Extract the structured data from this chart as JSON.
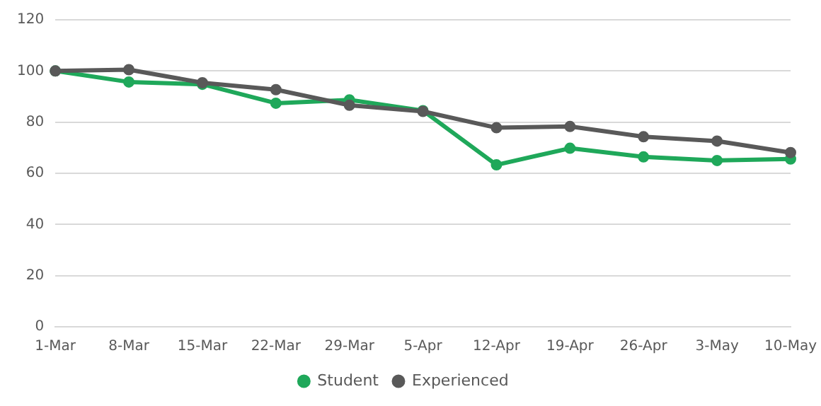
{
  "chart_data": {
    "type": "line",
    "categories": [
      "1-Mar",
      "8-Mar",
      "15-Mar",
      "22-Mar",
      "29-Mar",
      "5-Apr",
      "12-Apr",
      "19-Apr",
      "26-Apr",
      "3-May",
      "10-May"
    ],
    "series": [
      {
        "name": "Student",
        "color": "#1fa85a",
        "values": [
          100,
          95.7,
          94.8,
          87.4,
          88.7,
          84.5,
          63.3,
          69.8,
          66.4,
          65,
          65.6
        ]
      },
      {
        "name": "Experienced",
        "color": "#595959",
        "values": [
          100,
          100.5,
          95.4,
          92.7,
          86.6,
          84.2,
          77.8,
          78.3,
          74.3,
          72.6,
          68.1
        ]
      }
    ],
    "ylim": [
      0,
      120
    ],
    "yticks": [
      0,
      20,
      40,
      60,
      80,
      100,
      120
    ],
    "grid": "y",
    "legend": "bottom",
    "marker": "circle",
    "line_style": "solid"
  }
}
